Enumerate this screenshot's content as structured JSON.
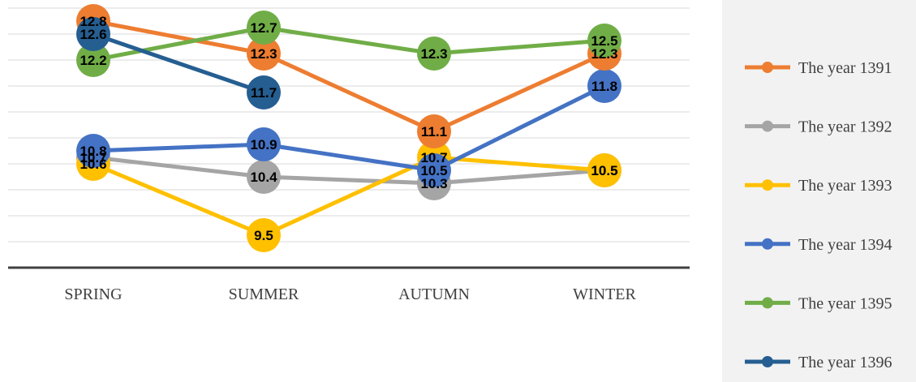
{
  "chart_data": {
    "type": "line",
    "title": "",
    "xlabel": "",
    "ylabel": "",
    "categories": [
      "SPRING",
      "SUMMER",
      "AUTUMN",
      "WINTER"
    ],
    "ylim": [
      9,
      13
    ],
    "grid": true,
    "legend_position": "right",
    "series": [
      {
        "name": "The year 1391",
        "color": "#ED7D31",
        "values": [
          12.8,
          12.3,
          11.1,
          12.3
        ]
      },
      {
        "name": "The year 1392",
        "color": "#A5A5A5",
        "values": [
          10.7,
          10.4,
          10.3,
          10.5
        ]
      },
      {
        "name": "The year 1393",
        "color": "#FFC000",
        "values": [
          10.6,
          9.5,
          10.7,
          10.5
        ]
      },
      {
        "name": "The year 1394",
        "color": "#4472C4",
        "values": [
          10.8,
          10.9,
          10.5,
          11.8
        ]
      },
      {
        "name": "The year 1395",
        "color": "#70AD47",
        "values": [
          12.2,
          12.7,
          12.3,
          12.5
        ]
      },
      {
        "name": "The year 1396",
        "color": "#255E91",
        "values": [
          12.6,
          11.7,
          null,
          null
        ]
      }
    ]
  }
}
